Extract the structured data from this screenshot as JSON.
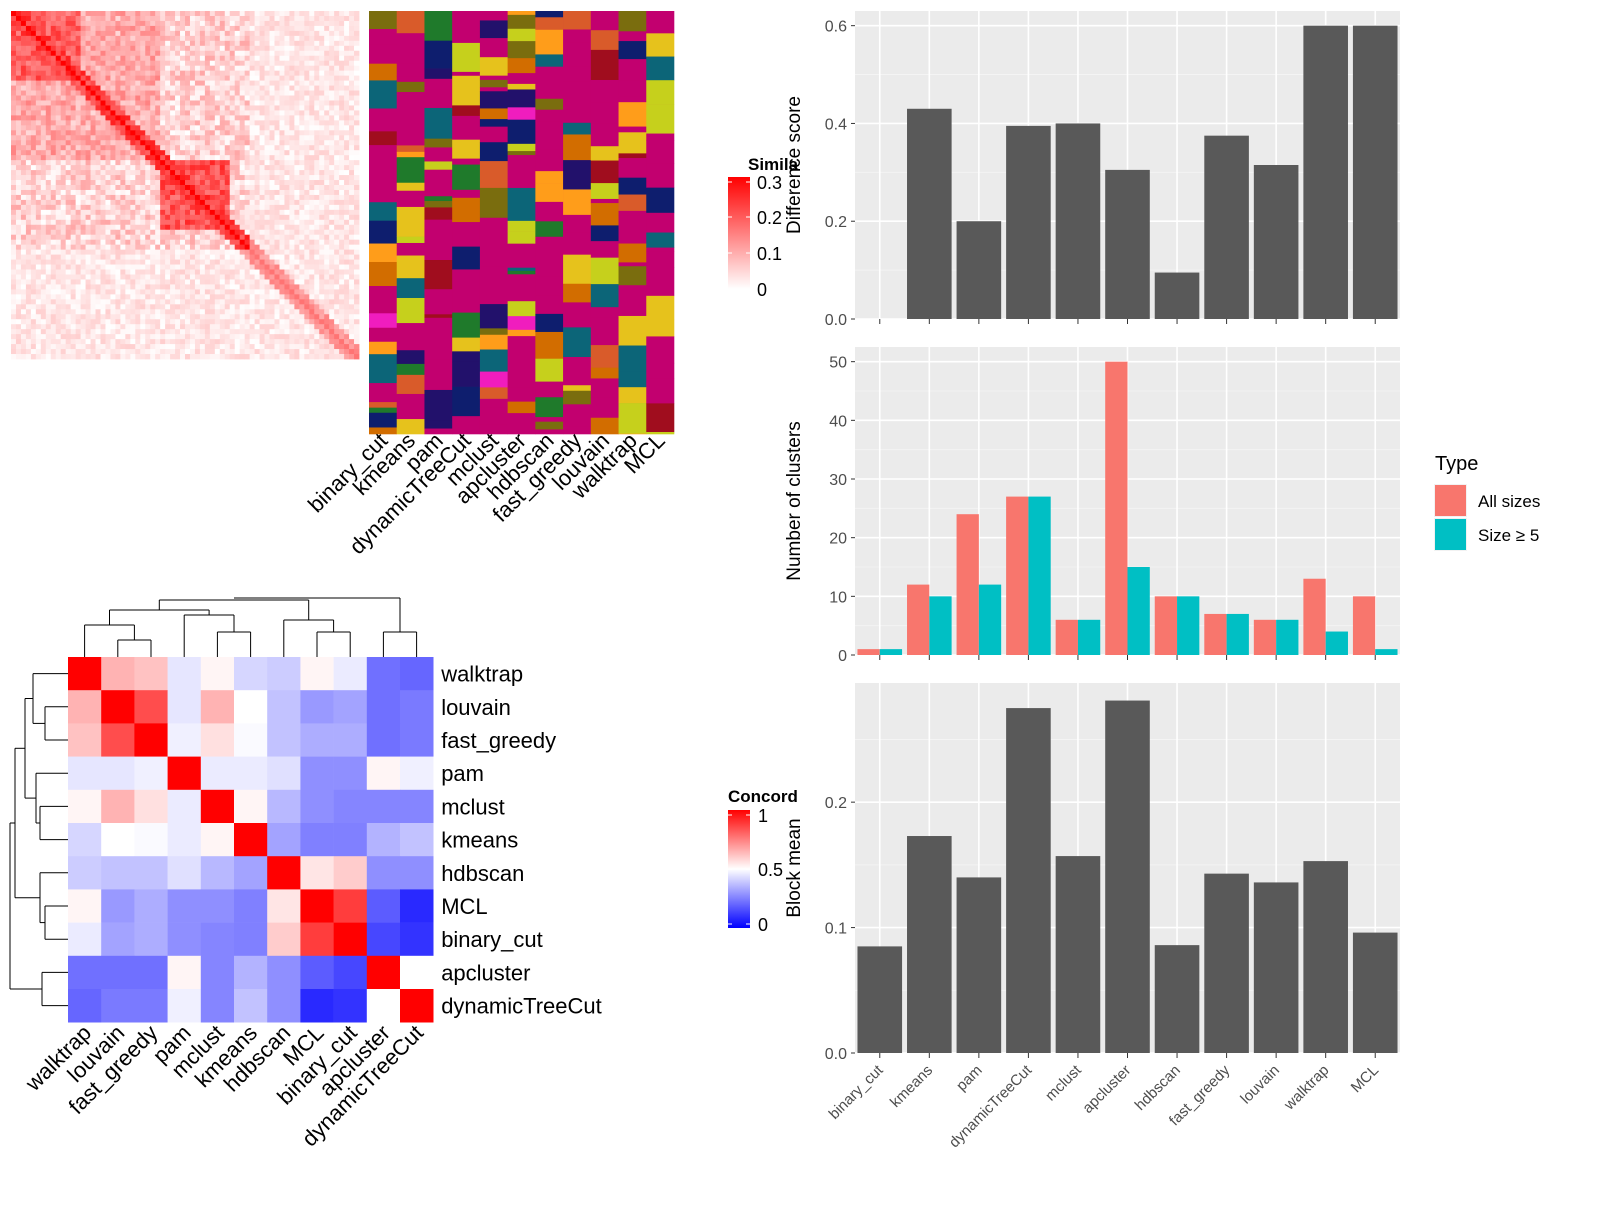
{
  "heatmap_similarity": {
    "legend_title": "Simila",
    "legend_ticks": [
      "0.3",
      "0.2",
      "0.1",
      "0"
    ],
    "xlabels": [
      "binary_cut",
      "kmeans",
      "pam",
      "dynamicTreeCut",
      "mclust",
      "apcluster",
      "hdbscan",
      "fast_greedy",
      "louvain",
      "walktrap",
      "MCL"
    ]
  },
  "concordance": {
    "legend_title": "Concord",
    "legend_ticks": [
      "1",
      "0.5",
      "0"
    ],
    "row_labels": [
      "walktrap",
      "louvain",
      "fast_greedy",
      "pam",
      "mclust",
      "kmeans",
      "hdbscan",
      "MCL",
      "binary_cut",
      "apcluster",
      "dynamicTreeCut"
    ],
    "col_labels": [
      "walktrap",
      "louvain",
      "fast_greedy",
      "pam",
      "mclust",
      "kmeans",
      "hdbscan",
      "MCL",
      "binary_cut",
      "apcluster",
      "dynamicTreeCut"
    ]
  },
  "chart_data": [
    {
      "type": "bar",
      "ylabel": "Difference score",
      "categories": [
        "binary_cut",
        "kmeans",
        "pam",
        "dynamicTreeCut",
        "mclust",
        "apcluster",
        "hdbscan",
        "fast_greedy",
        "louvain",
        "walktrap",
        "MCL"
      ],
      "values": [
        0.0,
        0.43,
        0.2,
        0.395,
        0.4,
        0.305,
        0.095,
        0.375,
        0.315,
        0.6,
        0.6
      ],
      "ylim": [
        0,
        0.63
      ],
      "yticks": [
        0.0,
        0.2,
        0.4,
        0.6
      ],
      "ytick_labels": [
        "0.0",
        "0.2",
        "0.4",
        "0.6"
      ]
    },
    {
      "type": "bar",
      "ylabel": "Number of clusters",
      "categories": [
        "binary_cut",
        "kmeans",
        "pam",
        "dynamicTreeCut",
        "mclust",
        "apcluster",
        "hdbscan",
        "fast_greedy",
        "louvain",
        "walktrap",
        "MCL"
      ],
      "legend_title": "Type",
      "legend_position": "right",
      "series": [
        {
          "name": "All sizes",
          "color": "#F8766D",
          "values": [
            1,
            12,
            24,
            27,
            6,
            50,
            10,
            7,
            6,
            13,
            10
          ]
        },
        {
          "name": "Size ≥ 5",
          "color": "#00BFC4",
          "values": [
            1,
            10,
            12,
            27,
            6,
            15,
            10,
            7,
            6,
            4,
            1
          ]
        }
      ],
      "ylim": [
        0,
        52.5
      ],
      "yticks": [
        0,
        10,
        20,
        30,
        40,
        50
      ],
      "ytick_labels": [
        "0",
        "10",
        "20",
        "30",
        "40",
        "50"
      ]
    },
    {
      "type": "bar",
      "ylabel": "Block mean",
      "categories": [
        "binary_cut",
        "kmeans",
        "pam",
        "dynamicTreeCut",
        "mclust",
        "apcluster",
        "hdbscan",
        "fast_greedy",
        "louvain",
        "walktrap",
        "MCL"
      ],
      "values": [
        0.085,
        0.173,
        0.14,
        0.275,
        0.157,
        0.281,
        0.086,
        0.143,
        0.136,
        0.153,
        0.096
      ],
      "ylim": [
        0,
        0.295
      ],
      "yticks": [
        0.0,
        0.1,
        0.2
      ],
      "ytick_labels": [
        "0.0",
        "0.1",
        "0.2"
      ]
    }
  ],
  "colors": {
    "bar": "#595959",
    "panel_bg": "#EBEBEB",
    "grid": "#ffffff",
    "heat_high": "#FF0000",
    "heat_mid": "#FFFFFF",
    "heat_low": "#0000FF"
  }
}
